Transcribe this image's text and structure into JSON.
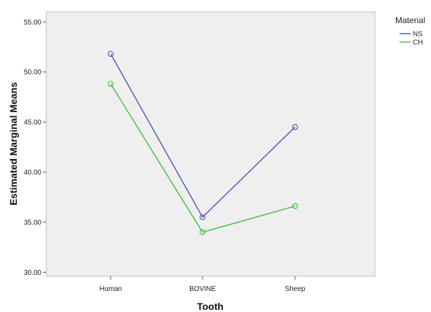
{
  "chart_data": {
    "type": "line",
    "categories": [
      "Human",
      "BOVINE",
      "Sheep"
    ],
    "series": [
      {
        "name": "NS",
        "color": "#5a67b5",
        "values": [
          51.8,
          35.5,
          44.5
        ]
      },
      {
        "name": "CH",
        "color": "#55c256",
        "values": [
          48.8,
          34.0,
          36.6
        ]
      }
    ],
    "yticks": [
      "30.00",
      "35.00",
      "40.00",
      "45.00",
      "50.00",
      "55.00"
    ],
    "ylim": [
      29.6,
      56.0
    ],
    "xlabel": "Tooth",
    "ylabel": "Estimated Marginal Means",
    "legend_title": "Material",
    "legend_position": "top-right",
    "marker": "open-circle",
    "plot_background": "#efefef",
    "grid": false
  }
}
